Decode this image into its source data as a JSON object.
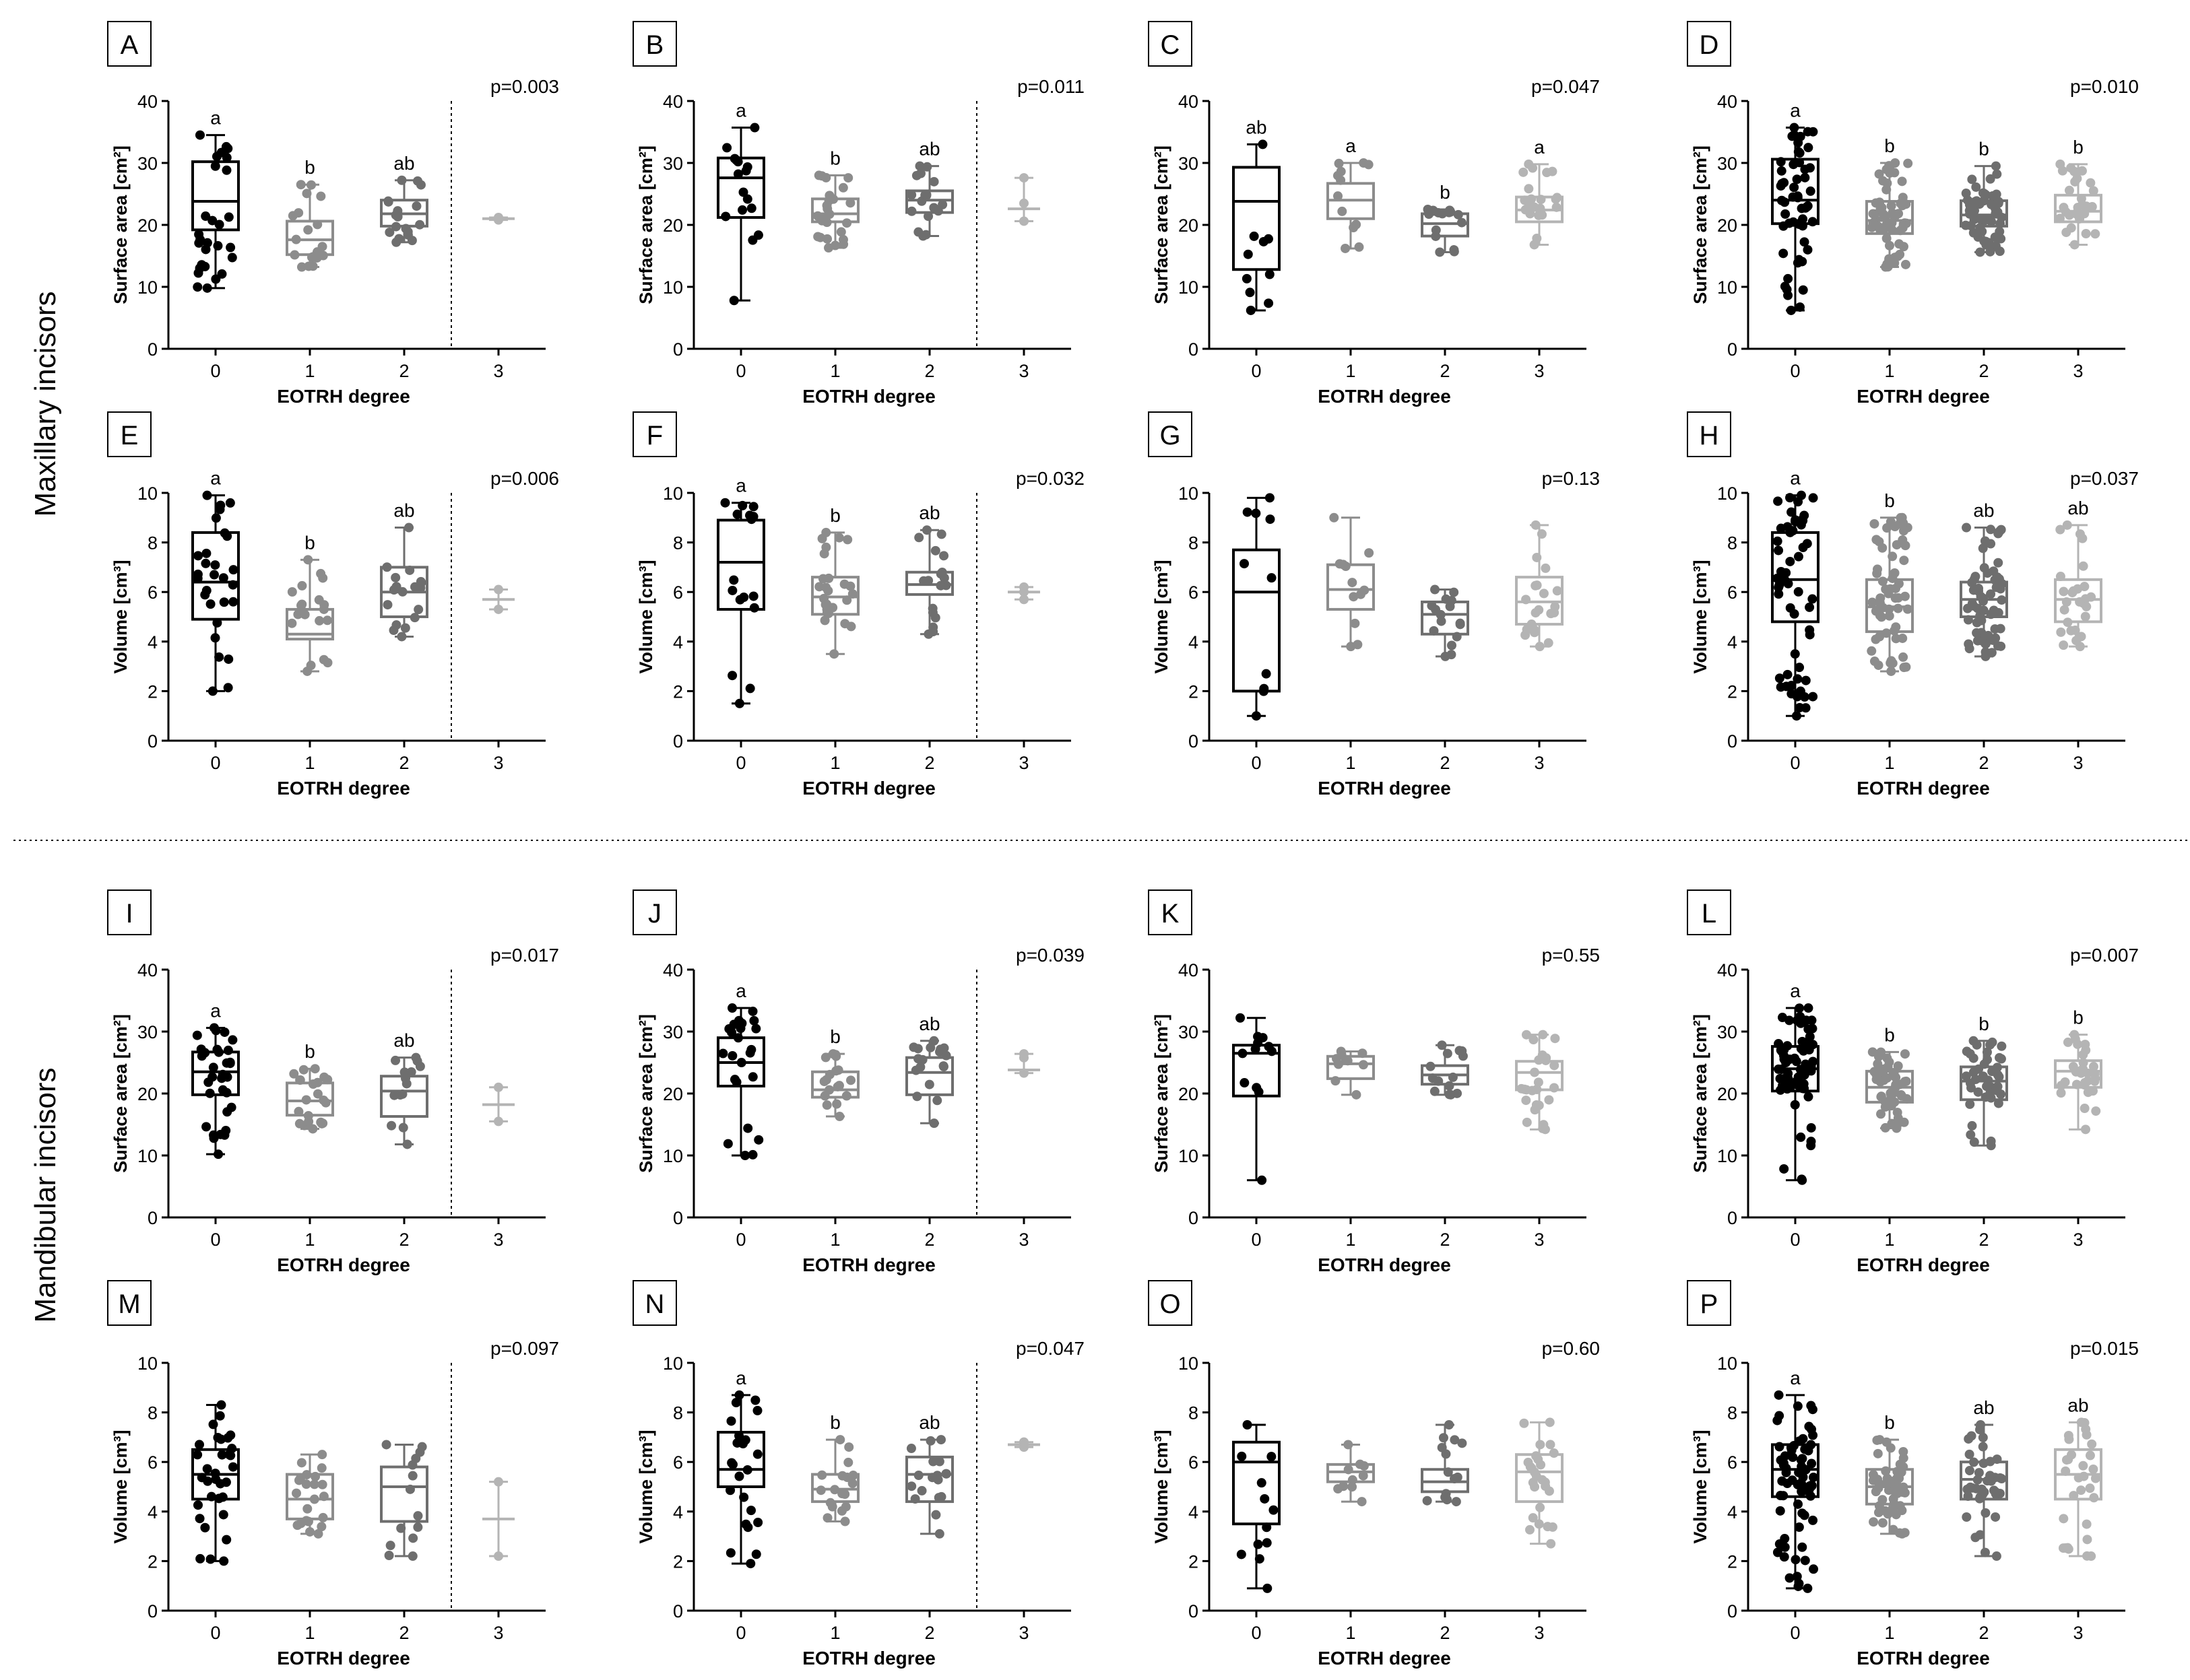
{
  "figure": {
    "row_label_top": "Maxillary incisors",
    "row_label_bottom": "Mandibular incisors"
  },
  "colors": {
    "degree_0": "#000000",
    "degree_1": "#8c8c8c",
    "degree_2": "#6e6e6e",
    "degree_3": "#b4b4b4"
  },
  "chart_data": [
    {
      "panel": "A",
      "type": "box",
      "ylabel": "Surface area [cm²]",
      "xlabel": "EOTRH degree",
      "ylim": [
        0,
        40
      ],
      "yticks": [
        0,
        10,
        20,
        30,
        40
      ],
      "categories": [
        "0",
        "1",
        "2",
        "3"
      ],
      "pvalue": "p=0.003",
      "divider_before": "3",
      "letters": [
        "a",
        "b",
        "ab",
        ""
      ],
      "boxes": [
        {
          "min": 9.8,
          "q1": 19.2,
          "median": 23.8,
          "q3": 30.2,
          "max": 34.5
        },
        {
          "min": 13.2,
          "q1": 15.2,
          "median": 17.6,
          "q3": 20.6,
          "max": 26.5
        },
        {
          "min": 17.2,
          "q1": 19.8,
          "median": 21.8,
          "q3": 24.0,
          "max": 27.2
        },
        {
          "min": 20.8,
          "q1": 20.8,
          "median": 21.0,
          "q3": 21.2,
          "max": 21.2
        }
      ],
      "n": [
        28,
        20,
        18,
        2
      ]
    },
    {
      "panel": "B",
      "type": "box",
      "ylabel": "Surface area [cm²]",
      "xlabel": "EOTRH degree",
      "ylim": [
        0,
        40
      ],
      "yticks": [
        0,
        10,
        20,
        30,
        40
      ],
      "categories": [
        "0",
        "1",
        "2",
        "3"
      ],
      "pvalue": "p=0.011",
      "divider_before": "3",
      "letters": [
        "a",
        "b",
        "ab",
        ""
      ],
      "boxes": [
        {
          "min": 7.8,
          "q1": 21.2,
          "median": 27.6,
          "q3": 30.8,
          "max": 35.7
        },
        {
          "min": 16.3,
          "q1": 20.5,
          "median": 21.8,
          "q3": 24.2,
          "max": 28.0
        },
        {
          "min": 18.2,
          "q1": 22.0,
          "median": 24.0,
          "q3": 25.5,
          "max": 29.5
        },
        {
          "min": 20.6,
          "q1": 20.6,
          "median": 22.6,
          "q3": 27.6,
          "max": 27.6
        }
      ],
      "n": [
        16,
        26,
        18,
        3
      ]
    },
    {
      "panel": "C",
      "type": "box",
      "ylabel": "Surface area [cm²]",
      "xlabel": "EOTRH degree",
      "ylim": [
        0,
        40
      ],
      "yticks": [
        0,
        10,
        20,
        30,
        40
      ],
      "categories": [
        "0",
        "1",
        "2",
        "3"
      ],
      "pvalue": "p=0.047",
      "divider_before": "",
      "letters": [
        "ab",
        "a",
        "b",
        "a"
      ],
      "boxes": [
        {
          "min": 6.2,
          "q1": 12.8,
          "median": 23.8,
          "q3": 29.3,
          "max": 33.0
        },
        {
          "min": 16.2,
          "q1": 21.0,
          "median": 24.0,
          "q3": 26.7,
          "max": 30.0
        },
        {
          "min": 15.6,
          "q1": 18.2,
          "median": 20.2,
          "q3": 21.8,
          "max": 22.5
        },
        {
          "min": 16.8,
          "q1": 20.5,
          "median": 22.4,
          "q3": 24.5,
          "max": 29.8
        }
      ],
      "n": [
        10,
        12,
        16,
        22
      ]
    },
    {
      "panel": "D",
      "type": "box",
      "ylabel": "Surface area [cm²]",
      "xlabel": "EOTRH degree",
      "ylim": [
        0,
        40
      ],
      "yticks": [
        0,
        10,
        20,
        30,
        40
      ],
      "categories": [
        "0",
        "1",
        "2",
        "3"
      ],
      "pvalue": "p=0.010",
      "divider_before": "",
      "letters": [
        "a",
        "b",
        "b",
        "b"
      ],
      "boxes": [
        {
          "min": 6.2,
          "q1": 20.2,
          "median": 24.0,
          "q3": 30.6,
          "max": 35.7
        },
        {
          "min": 13.2,
          "q1": 18.6,
          "median": 20.7,
          "q3": 23.8,
          "max": 30.0
        },
        {
          "min": 15.6,
          "q1": 19.8,
          "median": 21.6,
          "q3": 23.9,
          "max": 29.5
        },
        {
          "min": 16.8,
          "q1": 20.5,
          "median": 22.2,
          "q3": 24.8,
          "max": 29.8
        }
      ],
      "n": [
        55,
        60,
        60,
        28
      ]
    },
    {
      "panel": "E",
      "type": "box",
      "ylabel": "Volume [cm³]",
      "xlabel": "EOTRH degree",
      "ylim": [
        0,
        10
      ],
      "yticks": [
        0,
        2,
        4,
        6,
        8,
        10
      ],
      "categories": [
        "0",
        "1",
        "2",
        "3"
      ],
      "pvalue": "p=0.006",
      "divider_before": "3",
      "letters": [
        "a",
        "b",
        "ab",
        ""
      ],
      "boxes": [
        {
          "min": 2.0,
          "q1": 4.9,
          "median": 6.4,
          "q3": 8.4,
          "max": 9.9
        },
        {
          "min": 2.8,
          "q1": 4.1,
          "median": 4.3,
          "q3": 5.3,
          "max": 7.3
        },
        {
          "min": 4.2,
          "q1": 5.0,
          "median": 6.0,
          "q3": 7.0,
          "max": 8.6
        },
        {
          "min": 5.3,
          "q1": 5.3,
          "median": 5.7,
          "q3": 6.1,
          "max": 6.1
        }
      ],
      "n": [
        28,
        20,
        18,
        2
      ]
    },
    {
      "panel": "F",
      "type": "box",
      "ylabel": "Volume [cm³]",
      "xlabel": "EOTRH degree",
      "ylim": [
        0,
        10
      ],
      "yticks": [
        0,
        2,
        4,
        6,
        8,
        10
      ],
      "categories": [
        "0",
        "1",
        "2",
        "3"
      ],
      "pvalue": "p=0.032",
      "divider_before": "3",
      "letters": [
        "a",
        "b",
        "ab",
        ""
      ],
      "boxes": [
        {
          "min": 1.5,
          "q1": 5.3,
          "median": 7.2,
          "q3": 8.9,
          "max": 9.6
        },
        {
          "min": 3.5,
          "q1": 5.1,
          "median": 5.8,
          "q3": 6.6,
          "max": 8.4
        },
        {
          "min": 4.3,
          "q1": 5.9,
          "median": 6.3,
          "q3": 6.8,
          "max": 8.5
        },
        {
          "min": 5.7,
          "q1": 5.7,
          "median": 6.0,
          "q3": 6.2,
          "max": 6.2
        }
      ],
      "n": [
        16,
        26,
        18,
        3
      ]
    },
    {
      "panel": "G",
      "type": "box",
      "ylabel": "Volume [cm³]",
      "xlabel": "EOTRH degree",
      "ylim": [
        0,
        10
      ],
      "yticks": [
        0,
        2,
        4,
        6,
        8,
        10
      ],
      "categories": [
        "0",
        "1",
        "2",
        "3"
      ],
      "pvalue": "p=0.13",
      "divider_before": "",
      "letters": [
        "",
        "",
        "",
        ""
      ],
      "boxes": [
        {
          "min": 1.0,
          "q1": 2.0,
          "median": 6.0,
          "q3": 7.7,
          "max": 9.8
        },
        {
          "min": 3.8,
          "q1": 5.3,
          "median": 6.1,
          "q3": 7.1,
          "max": 9.0
        },
        {
          "min": 3.4,
          "q1": 4.3,
          "median": 5.1,
          "q3": 5.6,
          "max": 6.1
        },
        {
          "min": 3.8,
          "q1": 4.7,
          "median": 5.6,
          "q3": 6.6,
          "max": 8.7
        }
      ],
      "n": [
        10,
        12,
        16,
        22
      ]
    },
    {
      "panel": "H",
      "type": "box",
      "ylabel": "Volume [cm³]",
      "xlabel": "EOTRH degree",
      "ylim": [
        0,
        10
      ],
      "yticks": [
        0,
        2,
        4,
        6,
        8,
        10
      ],
      "categories": [
        "0",
        "1",
        "2",
        "3"
      ],
      "pvalue": "p=0.037",
      "divider_before": "",
      "letters": [
        "a",
        "b",
        "ab",
        "ab"
      ],
      "boxes": [
        {
          "min": 1.0,
          "q1": 4.8,
          "median": 6.5,
          "q3": 8.4,
          "max": 9.9
        },
        {
          "min": 2.8,
          "q1": 4.4,
          "median": 5.4,
          "q3": 6.5,
          "max": 9.0
        },
        {
          "min": 3.4,
          "q1": 5.0,
          "median": 5.7,
          "q3": 6.4,
          "max": 8.6
        },
        {
          "min": 3.8,
          "q1": 4.8,
          "median": 5.7,
          "q3": 6.5,
          "max": 8.7
        }
      ],
      "n": [
        55,
        60,
        60,
        28
      ]
    },
    {
      "panel": "I",
      "type": "box",
      "ylabel": "Surface area [cm²]",
      "xlabel": "EOTRH degree",
      "ylim": [
        0,
        40
      ],
      "yticks": [
        0,
        10,
        20,
        30,
        40
      ],
      "categories": [
        "0",
        "1",
        "2",
        "3"
      ],
      "pvalue": "p=0.017",
      "divider_before": "3",
      "letters": [
        "a",
        "b",
        "ab",
        ""
      ],
      "boxes": [
        {
          "min": 10.2,
          "q1": 19.8,
          "median": 23.5,
          "q3": 26.7,
          "max": 30.6
        },
        {
          "min": 14.3,
          "q1": 16.5,
          "median": 18.8,
          "q3": 21.7,
          "max": 24.0
        },
        {
          "min": 11.8,
          "q1": 16.3,
          "median": 20.4,
          "q3": 22.8,
          "max": 25.8
        },
        {
          "min": 15.5,
          "q1": 15.5,
          "median": 18.2,
          "q3": 21.0,
          "max": 21.0
        }
      ],
      "n": [
        32,
        22,
        14,
        2
      ]
    },
    {
      "panel": "J",
      "type": "box",
      "ylabel": "Surface area [cm²]",
      "xlabel": "EOTRH degree",
      "ylim": [
        0,
        40
      ],
      "yticks": [
        0,
        10,
        20,
        30,
        40
      ],
      "categories": [
        "0",
        "1",
        "2",
        "3"
      ],
      "pvalue": "p=0.039",
      "divider_before": "3",
      "letters": [
        "a",
        "b",
        "ab",
        ""
      ],
      "boxes": [
        {
          "min": 10.0,
          "q1": 21.2,
          "median": 25.0,
          "q3": 29.0,
          "max": 33.8
        },
        {
          "min": 16.3,
          "q1": 19.4,
          "median": 20.6,
          "q3": 23.5,
          "max": 26.4
        },
        {
          "min": 15.2,
          "q1": 19.8,
          "median": 23.4,
          "q3": 25.8,
          "max": 28.5
        },
        {
          "min": 23.3,
          "q1": 23.3,
          "median": 23.8,
          "q3": 26.4,
          "max": 26.4
        }
      ],
      "n": [
        24,
        18,
        18,
        3
      ]
    },
    {
      "panel": "K",
      "type": "box",
      "ylabel": "Surface area [cm²]",
      "xlabel": "EOTRH degree",
      "ylim": [
        0,
        40
      ],
      "yticks": [
        0,
        10,
        20,
        30,
        40
      ],
      "categories": [
        "0",
        "1",
        "2",
        "3"
      ],
      "pvalue": "p=0.55",
      "divider_before": "",
      "letters": [
        "",
        "",
        "",
        ""
      ],
      "boxes": [
        {
          "min": 6.0,
          "q1": 19.6,
          "median": 26.5,
          "q3": 27.8,
          "max": 32.2
        },
        {
          "min": 19.8,
          "q1": 22.4,
          "median": 24.8,
          "q3": 26.0,
          "max": 26.8
        },
        {
          "min": 19.8,
          "q1": 21.5,
          "median": 23.0,
          "q3": 24.5,
          "max": 27.8
        },
        {
          "min": 14.2,
          "q1": 20.6,
          "median": 23.4,
          "q3": 25.2,
          "max": 29.5
        }
      ],
      "n": [
        12,
        10,
        14,
        26
      ]
    },
    {
      "panel": "L",
      "type": "box",
      "ylabel": "Surface area [cm²]",
      "xlabel": "EOTRH degree",
      "ylim": [
        0,
        40
      ],
      "yticks": [
        0,
        10,
        20,
        30,
        40
      ],
      "categories": [
        "0",
        "1",
        "2",
        "3"
      ],
      "pvalue": "p=0.007",
      "divider_before": "",
      "letters": [
        "a",
        "b",
        "b",
        "b"
      ],
      "boxes": [
        {
          "min": 6.0,
          "q1": 20.4,
          "median": 24.0,
          "q3": 27.6,
          "max": 33.8
        },
        {
          "min": 14.4,
          "q1": 18.6,
          "median": 21.0,
          "q3": 23.6,
          "max": 26.7
        },
        {
          "min": 11.6,
          "q1": 19.0,
          "median": 22.0,
          "q3": 24.3,
          "max": 28.5
        },
        {
          "min": 14.2,
          "q1": 21.0,
          "median": 23.6,
          "q3": 25.3,
          "max": 29.5
        }
      ],
      "n": [
        70,
        50,
        45,
        30
      ]
    },
    {
      "panel": "M",
      "type": "box",
      "ylabel": "Volume [cm³]",
      "xlabel": "EOTRH degree",
      "ylim": [
        0,
        10
      ],
      "yticks": [
        0,
        2,
        4,
        6,
        8,
        10
      ],
      "categories": [
        "0",
        "1",
        "2",
        "3"
      ],
      "pvalue": "p=0.097",
      "divider_before": "3",
      "letters": [
        "",
        "",
        "",
        ""
      ],
      "boxes": [
        {
          "min": 2.0,
          "q1": 4.5,
          "median": 5.5,
          "q3": 6.5,
          "max": 8.3
        },
        {
          "min": 3.1,
          "q1": 3.7,
          "median": 4.5,
          "q3": 5.5,
          "max": 6.3
        },
        {
          "min": 2.2,
          "q1": 3.6,
          "median": 5.0,
          "q3": 5.8,
          "max": 6.7
        },
        {
          "min": 2.2,
          "q1": 2.2,
          "median": 3.7,
          "q3": 5.2,
          "max": 5.2
        }
      ],
      "n": [
        32,
        22,
        14,
        2
      ]
    },
    {
      "panel": "N",
      "type": "box",
      "ylabel": "Volume [cm³]",
      "xlabel": "EOTRH degree",
      "ylim": [
        0,
        10
      ],
      "yticks": [
        0,
        2,
        4,
        6,
        8,
        10
      ],
      "categories": [
        "0",
        "1",
        "2",
        "3"
      ],
      "pvalue": "p=0.047",
      "divider_before": "3",
      "letters": [
        "a",
        "b",
        "ab",
        ""
      ],
      "boxes": [
        {
          "min": 1.9,
          "q1": 5.0,
          "median": 5.7,
          "q3": 7.2,
          "max": 8.7
        },
        {
          "min": 3.6,
          "q1": 4.4,
          "median": 4.9,
          "q3": 5.5,
          "max": 6.9
        },
        {
          "min": 3.1,
          "q1": 4.4,
          "median": 5.5,
          "q3": 6.2,
          "max": 6.9
        },
        {
          "min": 6.6,
          "q1": 6.6,
          "median": 6.7,
          "q3": 6.8,
          "max": 6.8
        }
      ],
      "n": [
        24,
        18,
        18,
        3
      ]
    },
    {
      "panel": "O",
      "type": "box",
      "ylabel": "Volume [cm³]",
      "xlabel": "EOTRH degree",
      "ylim": [
        0,
        10
      ],
      "yticks": [
        0,
        2,
        4,
        6,
        8,
        10
      ],
      "categories": [
        "0",
        "1",
        "2",
        "3"
      ],
      "pvalue": "p=0.60",
      "divider_before": "",
      "letters": [
        "",
        "",
        "",
        ""
      ],
      "boxes": [
        {
          "min": 0.9,
          "q1": 3.5,
          "median": 6.0,
          "q3": 6.8,
          "max": 7.5
        },
        {
          "min": 4.4,
          "q1": 5.2,
          "median": 5.6,
          "q3": 5.9,
          "max": 6.7
        },
        {
          "min": 4.4,
          "q1": 4.8,
          "median": 5.2,
          "q3": 5.7,
          "max": 7.5
        },
        {
          "min": 2.7,
          "q1": 4.4,
          "median": 5.6,
          "q3": 6.3,
          "max": 7.6
        }
      ],
      "n": [
        12,
        10,
        14,
        26
      ]
    },
    {
      "panel": "P",
      "type": "box",
      "ylabel": "Volume [cm³]",
      "xlabel": "EOTRH degree",
      "ylim": [
        0,
        10
      ],
      "yticks": [
        0,
        2,
        4,
        6,
        8,
        10
      ],
      "categories": [
        "0",
        "1",
        "2",
        "3"
      ],
      "pvalue": "p=0.015",
      "divider_before": "",
      "letters": [
        "a",
        "b",
        "ab",
        "ab"
      ],
      "boxes": [
        {
          "min": 0.9,
          "q1": 4.6,
          "median": 5.7,
          "q3": 6.7,
          "max": 8.7
        },
        {
          "min": 3.1,
          "q1": 4.3,
          "median": 5.0,
          "q3": 5.7,
          "max": 6.9
        },
        {
          "min": 2.2,
          "q1": 4.5,
          "median": 5.3,
          "q3": 6.0,
          "max": 7.5
        },
        {
          "min": 2.2,
          "q1": 4.5,
          "median": 5.5,
          "q3": 6.5,
          "max": 7.6
        }
      ],
      "n": [
        70,
        50,
        45,
        30
      ]
    }
  ]
}
